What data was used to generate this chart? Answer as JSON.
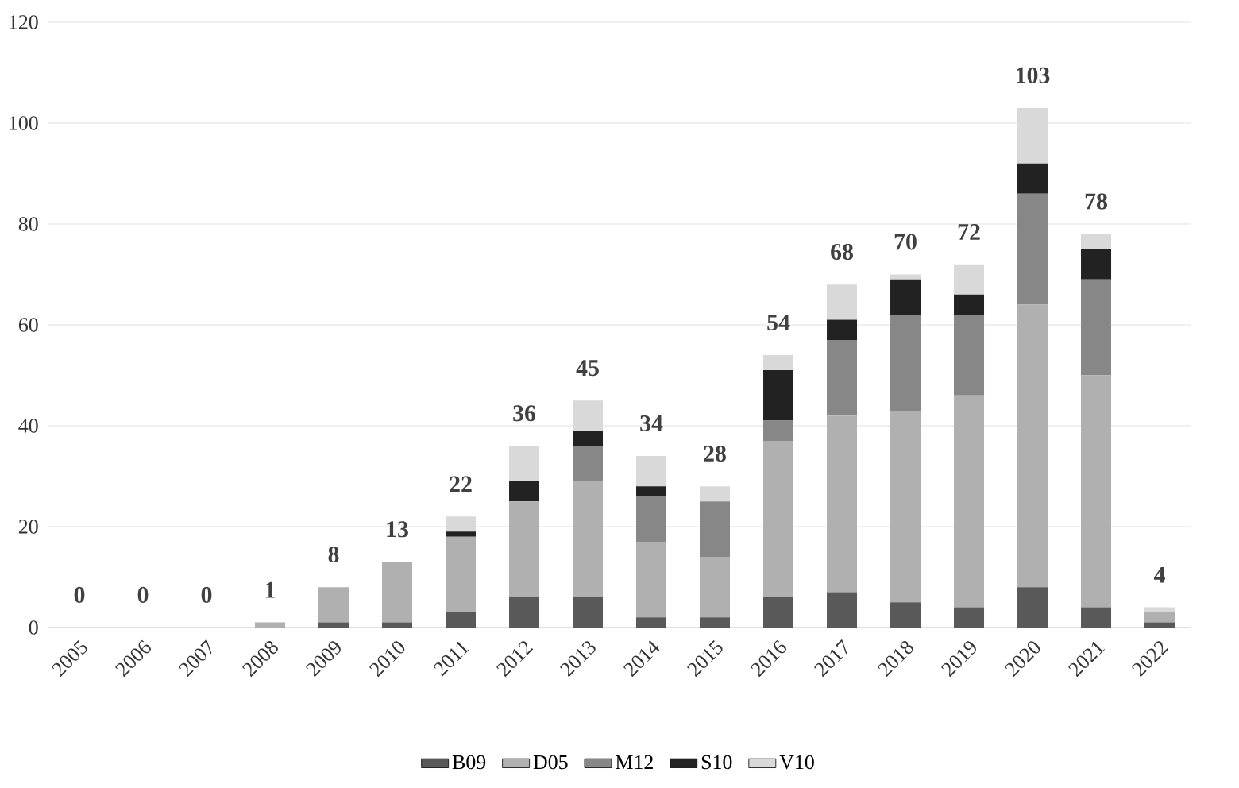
{
  "chart_data": {
    "type": "bar",
    "stacked": true,
    "categories": [
      "2005",
      "2006",
      "2007",
      "2008",
      "2009",
      "2010",
      "2011",
      "2012",
      "2013",
      "2014",
      "2015",
      "2016",
      "2017",
      "2018",
      "2019",
      "2020",
      "2021",
      "2022"
    ],
    "series": [
      {
        "name": "B09",
        "color": "#595959",
        "values": [
          0,
          0,
          0,
          0,
          1,
          1,
          3,
          6,
          6,
          2,
          2,
          6,
          7,
          5,
          4,
          8,
          4,
          1
        ]
      },
      {
        "name": "D05",
        "color": "#b0b0b0",
        "values": [
          0,
          0,
          0,
          1,
          7,
          12,
          15,
          19,
          23,
          15,
          12,
          31,
          35,
          38,
          42,
          56,
          46,
          2
        ]
      },
      {
        "name": "M12",
        "color": "#878787",
        "values": [
          0,
          0,
          0,
          0,
          0,
          0,
          0,
          0,
          7,
          9,
          11,
          4,
          15,
          19,
          16,
          22,
          19,
          0
        ]
      },
      {
        "name": "S10",
        "color": "#222222",
        "values": [
          0,
          0,
          0,
          0,
          0,
          0,
          1,
          4,
          3,
          2,
          0,
          10,
          4,
          7,
          4,
          6,
          6,
          0
        ]
      },
      {
        "name": "V10",
        "color": "#d9d9d9",
        "values": [
          0,
          0,
          0,
          0,
          0,
          0,
          3,
          7,
          6,
          6,
          3,
          3,
          7,
          1,
          6,
          11,
          3,
          1
        ]
      }
    ],
    "totals": [
      "0",
      "0",
      "0",
      "1",
      "8",
      "13",
      "22",
      "36",
      "45",
      "34",
      "28",
      "54",
      "68",
      "70",
      "72",
      "103",
      "78",
      "4"
    ],
    "ylim": [
      0,
      120
    ],
    "yticks": [
      0,
      20,
      40,
      60,
      80,
      100,
      120
    ],
    "grid": "y",
    "legend": "bottom"
  }
}
